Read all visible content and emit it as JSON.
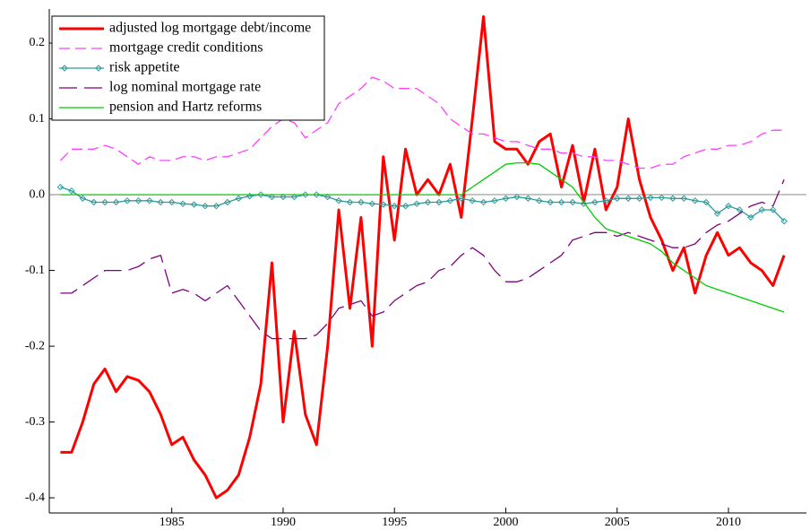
{
  "chart_data": {
    "type": "line",
    "x": [
      1980,
      1980.5,
      1981,
      1981.5,
      1982,
      1982.5,
      1983,
      1983.5,
      1984,
      1984.5,
      1985,
      1985.5,
      1986,
      1986.5,
      1987,
      1987.5,
      1988,
      1988.5,
      1989,
      1989.5,
      1990,
      1990.5,
      1991,
      1991.5,
      1992,
      1992.5,
      1993,
      1993.5,
      1994,
      1994.5,
      1995,
      1995.5,
      1996,
      1996.5,
      1997,
      1997.5,
      1998,
      1998.5,
      1999,
      1999.5,
      2000,
      2000.5,
      2001,
      2001.5,
      2002,
      2002.5,
      2003,
      2003.5,
      2004,
      2004.5,
      2005,
      2005.5,
      2006,
      2006.5,
      2007,
      2007.5,
      2008,
      2008.5,
      2009,
      2009.5,
      2010,
      2010.5,
      2011,
      2011.5,
      2012,
      2012.5
    ],
    "series": [
      {
        "name": "adjusted log mortgage debt/income",
        "color": "#ff0000",
        "line_style": "solid",
        "values": [
          -0.34,
          -0.34,
          -0.3,
          -0.25,
          -0.23,
          -0.26,
          -0.24,
          -0.245,
          -0.26,
          -0.29,
          -0.33,
          -0.32,
          -0.35,
          -0.37,
          -0.4,
          -0.39,
          -0.37,
          -0.32,
          -0.25,
          -0.09,
          -0.3,
          -0.18,
          -0.29,
          -0.33,
          -0.2,
          -0.02,
          -0.15,
          -0.03,
          -0.2,
          0.05,
          -0.06,
          0.06,
          0.0,
          0.02,
          0.0,
          0.04,
          -0.03,
          0.1,
          0.235,
          0.07,
          0.06,
          0.06,
          0.04,
          0.07,
          0.08,
          0.01,
          0.065,
          -0.01,
          0.06,
          -0.02,
          0.01,
          0.1,
          0.02,
          -0.03,
          -0.06,
          -0.1,
          -0.07,
          -0.13,
          -0.08,
          -0.05,
          -0.08,
          -0.07,
          -0.09,
          -0.1,
          -0.12,
          -0.08
        ]
      },
      {
        "name": "mortgage credit conditions",
        "color": "#ff40ff",
        "line_style": "dashed",
        "values": [
          0.045,
          0.06,
          0.06,
          0.06,
          0.065,
          0.06,
          0.05,
          0.04,
          0.05,
          0.045,
          0.045,
          0.05,
          0.05,
          0.045,
          0.05,
          0.05,
          0.055,
          0.06,
          0.075,
          0.09,
          0.1,
          0.095,
          0.075,
          0.085,
          0.095,
          0.12,
          0.13,
          0.14,
          0.155,
          0.15,
          0.14,
          0.14,
          0.14,
          0.13,
          0.12,
          0.1,
          0.09,
          0.08,
          0.08,
          0.075,
          0.07,
          0.07,
          0.065,
          0.06,
          0.06,
          0.055,
          0.055,
          0.05,
          0.05,
          0.045,
          0.045,
          0.04,
          0.035,
          0.035,
          0.04,
          0.04,
          0.05,
          0.055,
          0.06,
          0.06,
          0.065,
          0.065,
          0.07,
          0.08,
          0.085,
          0.085
        ]
      },
      {
        "name": "risk appetite",
        "color": "#2e9a9a",
        "line_style": "solid",
        "marker": "diamond",
        "values": [
          0.01,
          0.005,
          -0.005,
          -0.01,
          -0.01,
          -0.01,
          -0.008,
          -0.008,
          -0.008,
          -0.01,
          -0.01,
          -0.012,
          -0.013,
          -0.015,
          -0.015,
          -0.01,
          -0.005,
          -0.002,
          0.0,
          -0.003,
          -0.003,
          -0.003,
          0.0,
          0.0,
          -0.003,
          -0.008,
          -0.01,
          -0.01,
          -0.012,
          -0.013,
          -0.015,
          -0.015,
          -0.012,
          -0.01,
          -0.01,
          -0.008,
          -0.005,
          -0.008,
          -0.01,
          -0.008,
          -0.005,
          -0.003,
          -0.005,
          -0.008,
          -0.01,
          -0.01,
          -0.01,
          -0.012,
          -0.01,
          -0.008,
          -0.005,
          -0.005,
          -0.005,
          -0.004,
          -0.004,
          -0.005,
          -0.005,
          -0.008,
          -0.01,
          -0.025,
          -0.015,
          -0.02,
          -0.03,
          -0.02,
          -0.02,
          -0.035
        ]
      },
      {
        "name": "log nominal mortgage rate",
        "color": "#800080",
        "line_style": "longdash",
        "values": [
          -0.13,
          -0.13,
          -0.12,
          -0.11,
          -0.1,
          -0.1,
          -0.1,
          -0.095,
          -0.085,
          -0.08,
          -0.13,
          -0.125,
          -0.13,
          -0.14,
          -0.13,
          -0.12,
          -0.14,
          -0.16,
          -0.18,
          -0.19,
          -0.19,
          -0.19,
          -0.19,
          -0.185,
          -0.17,
          -0.15,
          -0.145,
          -0.14,
          -0.16,
          -0.155,
          -0.14,
          -0.13,
          -0.12,
          -0.115,
          -0.1,
          -0.095,
          -0.08,
          -0.07,
          -0.08,
          -0.1,
          -0.115,
          -0.115,
          -0.11,
          -0.1,
          -0.09,
          -0.08,
          -0.06,
          -0.055,
          -0.05,
          -0.05,
          -0.055,
          -0.05,
          -0.055,
          -0.06,
          -0.065,
          -0.07,
          -0.07,
          -0.065,
          -0.05,
          -0.04,
          -0.035,
          -0.025,
          -0.015,
          -0.01,
          -0.015,
          0.02
        ]
      },
      {
        "name": "pension and Hartz reforms",
        "color": "#00cc00",
        "line_style": "solid",
        "values": [
          0,
          0,
          0,
          0,
          0,
          0,
          0,
          0,
          0,
          0,
          0,
          0,
          0,
          0,
          0,
          0,
          0,
          0,
          0,
          0,
          0,
          0,
          0,
          0,
          0,
          0,
          0,
          0,
          0,
          0,
          0,
          0,
          0,
          0,
          0,
          0,
          0.0,
          0.01,
          0.02,
          0.03,
          0.04,
          0.042,
          0.042,
          0.04,
          0.03,
          0.02,
          0.01,
          -0.01,
          -0.03,
          -0.045,
          -0.05,
          -0.055,
          -0.06,
          -0.065,
          -0.075,
          -0.09,
          -0.1,
          -0.11,
          -0.12,
          -0.125,
          -0.13,
          -0.135,
          -0.14,
          -0.145,
          -0.15,
          -0.155
        ]
      }
    ],
    "xlim": [
      1979.5,
      2013.5
    ],
    "xticks": [
      1985,
      1990,
      1995,
      2000,
      2005,
      2010
    ],
    "ylim": [
      -0.42,
      0.245
    ],
    "yticks": [
      0.2,
      0.1,
      {
        "value": 0,
        "label": "0.0"
      },
      -0.1,
      -0.2,
      -0.3,
      -0.4
    ],
    "legend": "upper left"
  }
}
